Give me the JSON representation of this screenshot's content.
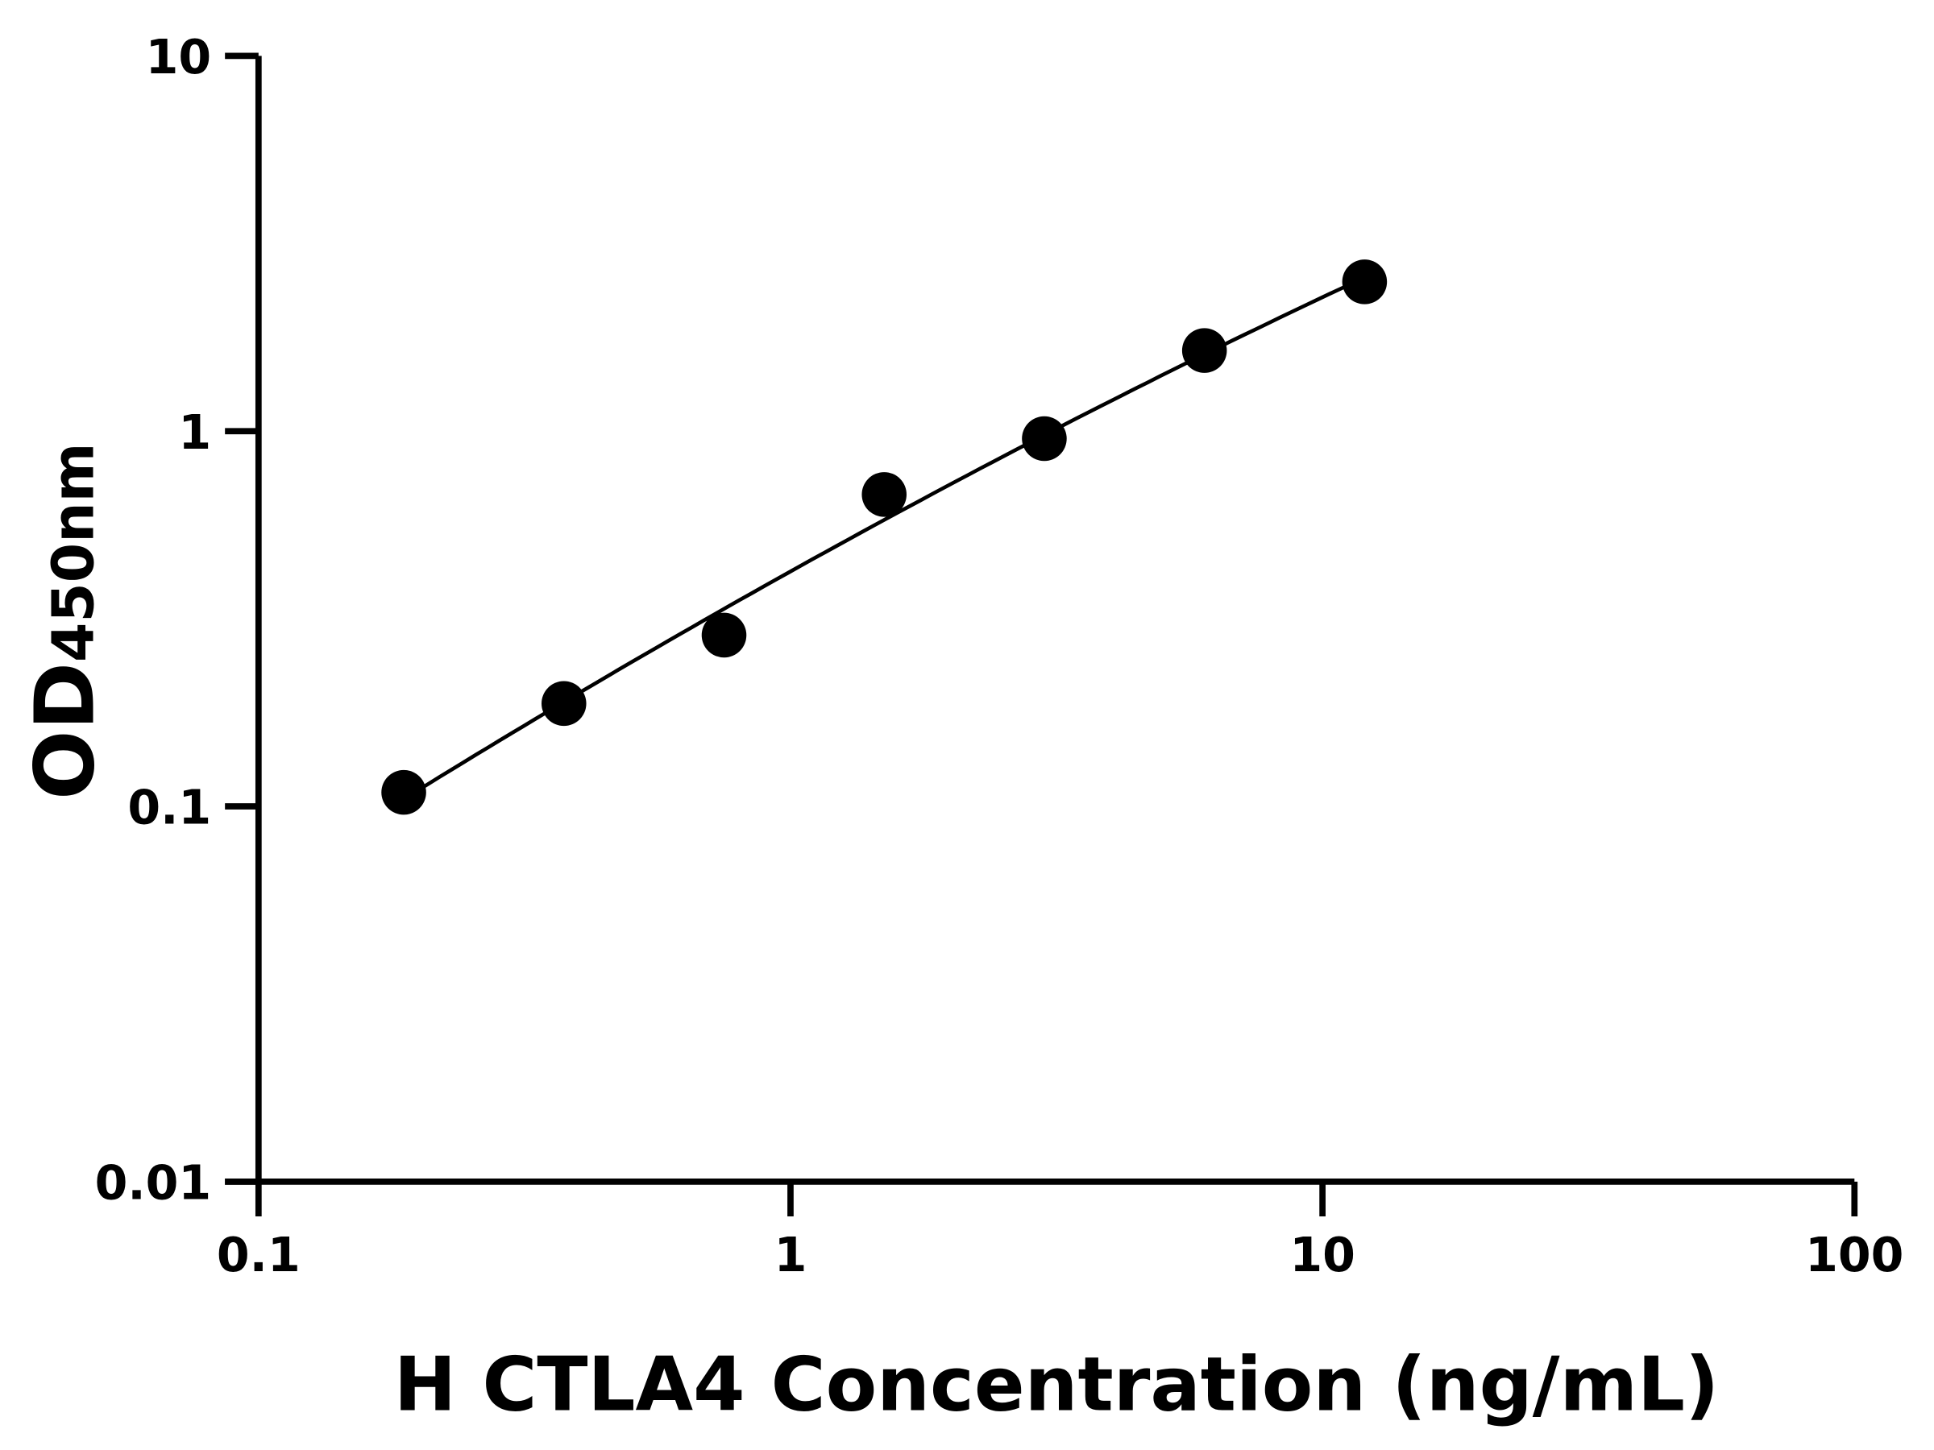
{
  "chart_data": {
    "type": "scatter",
    "title": "",
    "xlabel": "H CTLA4 Concentration (ng/mL)",
    "ylabel_main": "OD",
    "ylabel_sub": "450nm",
    "x_scale": "log",
    "y_scale": "log",
    "xlim": [
      0.1,
      100
    ],
    "ylim": [
      0.01,
      10
    ],
    "x_ticks": [
      "0.1",
      "1",
      "10",
      "100"
    ],
    "y_ticks": [
      "0.01",
      "0.1",
      "1",
      "10"
    ],
    "grid": false,
    "fit_curve": true,
    "colors": {
      "points": "#000000",
      "curve": "#000000",
      "axes": "#000000"
    },
    "x": [
      0.1875,
      0.375,
      0.75,
      1.5,
      3,
      6,
      12
    ],
    "y": [
      0.109,
      0.188,
      0.286,
      0.678,
      0.955,
      1.64,
      2.5
    ]
  }
}
